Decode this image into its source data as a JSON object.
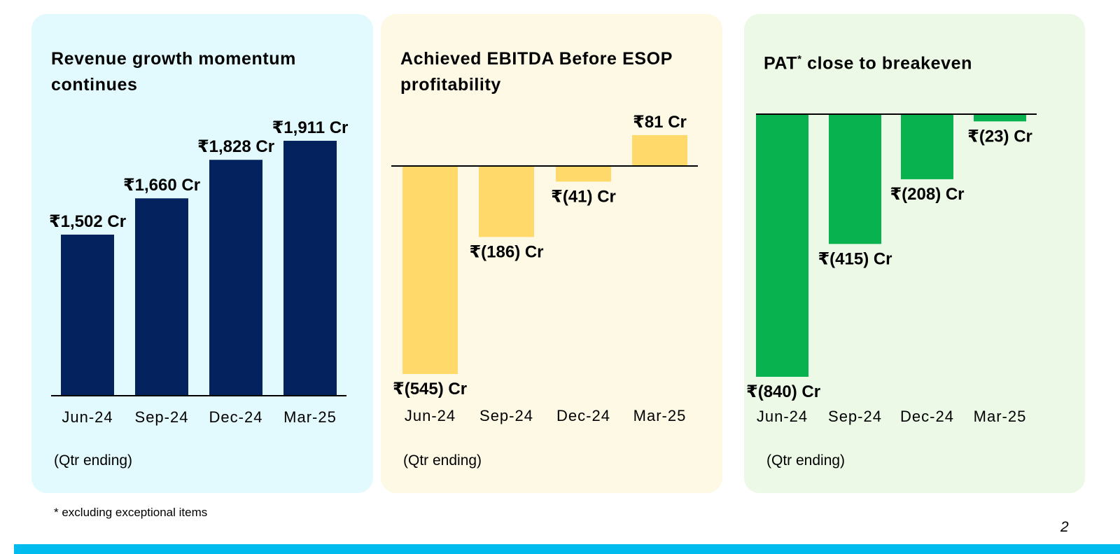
{
  "colors": {
    "revenue_bg": "#e2f9fd",
    "revenue_bar": "#04225e",
    "ebitda_bg": "#fef9e5",
    "ebitda_bar": "#ffda6b",
    "pat_bg": "#ebf9e6",
    "pat_bar": "#08b24f",
    "bottom_bar": "#00bbee",
    "axis": "#000000"
  },
  "qtr_note": "(Qtr ending)",
  "footnote": "* excluding exceptional items",
  "page_number": "2",
  "chart_data": [
    {
      "id": "revenue",
      "type": "bar",
      "title": "Revenue growth momentum continues",
      "categories": [
        "Jun-24",
        "Sep-24",
        "Dec-24",
        "Mar-25"
      ],
      "values": [
        1502,
        1660,
        1828,
        1911
      ],
      "labels": [
        "₹1,502 Cr",
        "₹1,660 Cr",
        "₹1,828 Cr",
        "₹1,911 Cr"
      ],
      "unit": "₹ Cr",
      "ylim": [
        800,
        1911
      ],
      "xlabel": "(Qtr ending)",
      "legend": "none"
    },
    {
      "id": "ebitda",
      "type": "bar",
      "title": "Achieved EBITDA Before ESOP profitability",
      "categories": [
        "Jun-24",
        "Sep-24",
        "Dec-24",
        "Mar-25"
      ],
      "values": [
        -545,
        -186,
        -41,
        81
      ],
      "labels": [
        "₹(545) Cr",
        "₹(186) Cr",
        "₹(41) Cr",
        "₹81 Cr"
      ],
      "unit": "₹ Cr",
      "ylim": [
        -545,
        81
      ],
      "xlabel": "(Qtr ending)",
      "legend": "none"
    },
    {
      "id": "pat",
      "type": "bar",
      "title": "PAT* close to breakeven",
      "title_main": "PAT",
      "title_sup": "*",
      "title_rest": " close to breakeven",
      "categories": [
        "Jun-24",
        "Sep-24",
        "Dec-24",
        "Mar-25"
      ],
      "values": [
        -840,
        -415,
        -208,
        -23
      ],
      "labels": [
        "₹(840) Cr",
        "₹(415) Cr",
        "₹(208) Cr",
        "₹(23) Cr"
      ],
      "unit": "₹ Cr",
      "ylim": [
        -840,
        0
      ],
      "xlabel": "(Qtr ending)",
      "legend": "none"
    }
  ]
}
